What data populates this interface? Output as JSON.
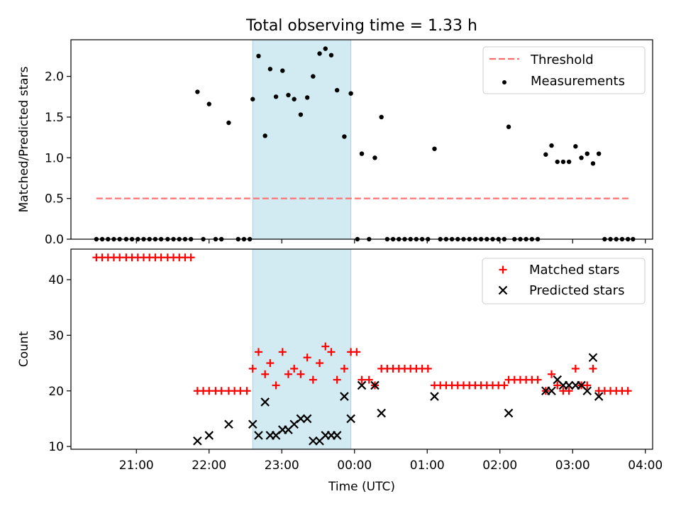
{
  "figure": {
    "title": "Total observing time = 1.33 h"
  },
  "colors": {
    "threshold": "#ff6b6b",
    "measurements": "#000000",
    "matched": "#ff0000",
    "predicted": "#000000",
    "shaded_window": "#add8e6"
  },
  "chart_data": [
    {
      "type": "scatter",
      "ylabel": "Matched/Predicted stars",
      "xlabel": "",
      "ylim": [
        0,
        2.45
      ],
      "yticks": [
        "0.0",
        "0.5",
        "1.0",
        "1.5",
        "2.0"
      ],
      "x_tick_hours": [
        21,
        22,
        23,
        24,
        25,
        26,
        27,
        28
      ],
      "xticklabels_shown": false,
      "shaded_interval_hours": [
        22.6,
        23.95
      ],
      "legend_position": "upper right",
      "threshold": {
        "name": "Threshold",
        "value": 0.5,
        "x_range_hours": [
          20.45,
          27.8
        ],
        "style": "dashed"
      },
      "series": [
        {
          "name": "Measurements",
          "marker": "dot",
          "points": [
            [
              20.45,
              0
            ],
            [
              20.53,
              0
            ],
            [
              20.61,
              0
            ],
            [
              20.69,
              0
            ],
            [
              20.77,
              0
            ],
            [
              20.86,
              0
            ],
            [
              20.94,
              0
            ],
            [
              21.02,
              0
            ],
            [
              21.1,
              0
            ],
            [
              21.18,
              0
            ],
            [
              21.26,
              0
            ],
            [
              21.34,
              0
            ],
            [
              21.43,
              0
            ],
            [
              21.51,
              0
            ],
            [
              21.59,
              0
            ],
            [
              21.67,
              0
            ],
            [
              21.75,
              0
            ],
            [
              21.84,
              1.81
            ],
            [
              21.92,
              0
            ],
            [
              22.0,
              1.66
            ],
            [
              22.09,
              0
            ],
            [
              22.17,
              0
            ],
            [
              22.27,
              1.43
            ],
            [
              22.4,
              0
            ],
            [
              22.48,
              0
            ],
            [
              22.56,
              0
            ],
            [
              22.6,
              1.72
            ],
            [
              22.68,
              2.25
            ],
            [
              22.77,
              1.27
            ],
            [
              22.84,
              2.09
            ],
            [
              22.92,
              1.75
            ],
            [
              23.01,
              2.07
            ],
            [
              23.09,
              1.77
            ],
            [
              23.17,
              1.72
            ],
            [
              23.26,
              1.53
            ],
            [
              23.35,
              1.74
            ],
            [
              23.43,
              2.0
            ],
            [
              23.52,
              2.28
            ],
            [
              23.6,
              2.34
            ],
            [
              23.68,
              2.26
            ],
            [
              23.76,
              1.83
            ],
            [
              23.86,
              1.26
            ],
            [
              23.95,
              1.79
            ],
            [
              24.04,
              0
            ],
            [
              24.1,
              1.05
            ],
            [
              24.2,
              0
            ],
            [
              24.28,
              1.0
            ],
            [
              24.37,
              1.5
            ],
            [
              24.45,
              0
            ],
            [
              24.53,
              0
            ],
            [
              24.61,
              0
            ],
            [
              24.69,
              0
            ],
            [
              24.77,
              0
            ],
            [
              24.85,
              0
            ],
            [
              24.93,
              0
            ],
            [
              25.01,
              0
            ],
            [
              25.1,
              1.11
            ],
            [
              25.18,
              0
            ],
            [
              25.26,
              0
            ],
            [
              25.34,
              0
            ],
            [
              25.42,
              0
            ],
            [
              25.5,
              0
            ],
            [
              25.58,
              0
            ],
            [
              25.66,
              0
            ],
            [
              25.74,
              0
            ],
            [
              25.82,
              0
            ],
            [
              25.9,
              0
            ],
            [
              25.98,
              0
            ],
            [
              26.06,
              0
            ],
            [
              26.12,
              1.38
            ],
            [
              26.2,
              0
            ],
            [
              26.28,
              0
            ],
            [
              26.36,
              0
            ],
            [
              26.44,
              0
            ],
            [
              26.52,
              0
            ],
            [
              26.63,
              1.04
            ],
            [
              26.71,
              1.15
            ],
            [
              26.79,
              0.95
            ],
            [
              26.87,
              0.95
            ],
            [
              26.95,
              0.95
            ],
            [
              27.04,
              1.14
            ],
            [
              27.12,
              1.0
            ],
            [
              27.2,
              1.05
            ],
            [
              27.28,
              0.93
            ],
            [
              27.36,
              1.05
            ],
            [
              27.44,
              0
            ],
            [
              27.52,
              0
            ],
            [
              27.6,
              0
            ],
            [
              27.68,
              0
            ],
            [
              27.76,
              0
            ],
            [
              27.83,
              0
            ]
          ]
        }
      ]
    },
    {
      "type": "scatter",
      "ylabel": "Count",
      "xlabel": "Time (UTC)",
      "ylim": [
        9.5,
        45.5
      ],
      "yticks": [
        "10",
        "20",
        "30",
        "40"
      ],
      "x_tick_hours": [
        21,
        22,
        23,
        24,
        25,
        26,
        27,
        28
      ],
      "xticklabels": [
        "21:00",
        "22:00",
        "23:00",
        "00:00",
        "01:00",
        "02:00",
        "03:00",
        "04:00"
      ],
      "shaded_interval_hours": [
        22.6,
        23.95
      ],
      "legend_position": "upper right",
      "series": [
        {
          "name": "Matched stars",
          "marker": "plus",
          "points": [
            [
              20.45,
              44
            ],
            [
              20.53,
              44
            ],
            [
              20.61,
              44
            ],
            [
              20.69,
              44
            ],
            [
              20.77,
              44
            ],
            [
              20.86,
              44
            ],
            [
              20.94,
              44
            ],
            [
              21.02,
              44
            ],
            [
              21.1,
              44
            ],
            [
              21.18,
              44
            ],
            [
              21.26,
              44
            ],
            [
              21.34,
              44
            ],
            [
              21.43,
              44
            ],
            [
              21.51,
              44
            ],
            [
              21.59,
              44
            ],
            [
              21.67,
              44
            ],
            [
              21.75,
              44
            ],
            [
              21.84,
              20
            ],
            [
              21.92,
              20
            ],
            [
              22.0,
              20
            ],
            [
              22.09,
              20
            ],
            [
              22.17,
              20
            ],
            [
              22.27,
              20
            ],
            [
              22.35,
              20
            ],
            [
              22.43,
              20
            ],
            [
              22.52,
              20
            ],
            [
              22.6,
              24
            ],
            [
              22.68,
              27
            ],
            [
              22.77,
              23
            ],
            [
              22.84,
              25
            ],
            [
              22.92,
              21
            ],
            [
              23.01,
              27
            ],
            [
              23.09,
              23
            ],
            [
              23.17,
              24
            ],
            [
              23.26,
              23
            ],
            [
              23.35,
              26
            ],
            [
              23.43,
              22
            ],
            [
              23.52,
              25
            ],
            [
              23.6,
              28
            ],
            [
              23.68,
              27
            ],
            [
              23.76,
              22
            ],
            [
              23.86,
              24
            ],
            [
              23.95,
              27
            ],
            [
              24.03,
              27
            ],
            [
              24.1,
              22
            ],
            [
              24.2,
              22
            ],
            [
              24.28,
              21
            ],
            [
              24.37,
              24
            ],
            [
              24.45,
              24
            ],
            [
              24.53,
              24
            ],
            [
              24.61,
              24
            ],
            [
              24.69,
              24
            ],
            [
              24.77,
              24
            ],
            [
              24.85,
              24
            ],
            [
              24.93,
              24
            ],
            [
              25.01,
              24
            ],
            [
              25.1,
              21
            ],
            [
              25.18,
              21
            ],
            [
              25.26,
              21
            ],
            [
              25.34,
              21
            ],
            [
              25.42,
              21
            ],
            [
              25.5,
              21
            ],
            [
              25.58,
              21
            ],
            [
              25.66,
              21
            ],
            [
              25.74,
              21
            ],
            [
              25.82,
              21
            ],
            [
              25.9,
              21
            ],
            [
              25.98,
              21
            ],
            [
              26.06,
              21
            ],
            [
              26.12,
              22
            ],
            [
              26.2,
              22
            ],
            [
              26.28,
              22
            ],
            [
              26.36,
              22
            ],
            [
              26.44,
              22
            ],
            [
              26.52,
              22
            ],
            [
              26.63,
              20
            ],
            [
              26.71,
              23
            ],
            [
              26.79,
              21
            ],
            [
              26.87,
              20
            ],
            [
              26.95,
              20
            ],
            [
              27.04,
              24
            ],
            [
              27.12,
              21
            ],
            [
              27.2,
              21
            ],
            [
              27.28,
              24
            ],
            [
              27.36,
              20
            ],
            [
              27.44,
              20
            ],
            [
              27.52,
              20
            ],
            [
              27.6,
              20
            ],
            [
              27.68,
              20
            ],
            [
              27.76,
              20
            ]
          ]
        },
        {
          "name": "Predicted stars",
          "marker": "x",
          "points": [
            [
              21.84,
              11
            ],
            [
              22.0,
              12
            ],
            [
              22.27,
              14
            ],
            [
              22.6,
              14
            ],
            [
              22.68,
              12
            ],
            [
              22.77,
              18
            ],
            [
              22.84,
              12
            ],
            [
              22.92,
              12
            ],
            [
              23.01,
              13
            ],
            [
              23.09,
              13
            ],
            [
              23.17,
              14
            ],
            [
              23.26,
              15
            ],
            [
              23.35,
              15
            ],
            [
              23.43,
              11
            ],
            [
              23.52,
              11
            ],
            [
              23.6,
              12
            ],
            [
              23.68,
              12
            ],
            [
              23.76,
              12
            ],
            [
              23.86,
              19
            ],
            [
              23.95,
              15
            ],
            [
              24.1,
              21
            ],
            [
              24.28,
              21
            ],
            [
              24.37,
              16
            ],
            [
              25.1,
              19
            ],
            [
              26.12,
              16
            ],
            [
              26.63,
              20
            ],
            [
              26.71,
              20
            ],
            [
              26.79,
              22
            ],
            [
              26.87,
              21
            ],
            [
              26.95,
              21
            ],
            [
              27.04,
              21
            ],
            [
              27.12,
              21
            ],
            [
              27.2,
              20
            ],
            [
              27.28,
              26
            ],
            [
              27.36,
              19
            ]
          ]
        }
      ]
    }
  ]
}
